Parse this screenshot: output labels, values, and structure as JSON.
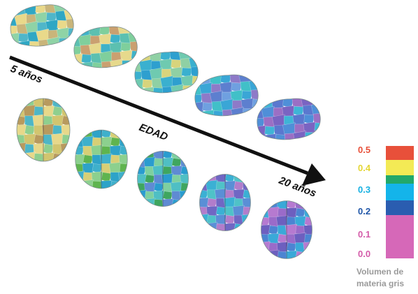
{
  "labels": {
    "start_age": "5 años",
    "axis": "EDAD",
    "end_age": "20 años"
  },
  "legend": {
    "title_line1": "Volumen de",
    "title_line2": "materia gris",
    "ticks": [
      {
        "label": "0.5",
        "color": "#e8503a"
      },
      {
        "label": "0.4",
        "color": "#e4d635"
      },
      {
        "label": "0.3",
        "color": "#16b0e2"
      },
      {
        "label": "0.2",
        "color": "#1f56a8"
      },
      {
        "label": "0.1",
        "color": "#d45ba9"
      },
      {
        "label": "0.0",
        "color": "#d45ba9"
      }
    ],
    "swatches": [
      "#e8503a",
      "#f3ea55",
      "#22a86a",
      "#14b4ea",
      "#2a5db0",
      "#d668b8"
    ]
  },
  "brains": {
    "side_views": [
      {
        "colors": [
          "#8fd3a6",
          "#e9d98a",
          "#4fb6c9",
          "#c9b57a",
          "#2fa7c4"
        ]
      },
      {
        "colors": [
          "#e6d98c",
          "#7fcf9c",
          "#3fb2c8",
          "#caa070",
          "#5cc0b0"
        ]
      },
      {
        "colors": [
          "#6fcab0",
          "#3ab0cf",
          "#d8d47c",
          "#2e9fcf",
          "#8fd0a4"
        ]
      },
      {
        "colors": [
          "#5d7fcf",
          "#3aa6d6",
          "#6fa0e0",
          "#8e7ac8",
          "#41c0c8"
        ]
      },
      {
        "colors": [
          "#7a64c2",
          "#4f8fd8",
          "#3fb4d6",
          "#9b6fc4",
          "#5a78cf"
        ]
      }
    ],
    "top_views": [
      {
        "colors": [
          "#e7d88a",
          "#b89a5e",
          "#8fcf8e",
          "#4eb6c6",
          "#d2c56f"
        ]
      },
      {
        "colors": [
          "#8cd08e",
          "#3fb0cb",
          "#5fb44f",
          "#d7cf76",
          "#2ea3c8"
        ]
      },
      {
        "colors": [
          "#4fbfc4",
          "#2a9ccf",
          "#3fa65f",
          "#7ed0a0",
          "#5f8bd3"
        ]
      },
      {
        "colors": [
          "#5a8fd6",
          "#3bb0d4",
          "#b27dcb",
          "#4fc2c8",
          "#7067c4"
        ]
      },
      {
        "colors": [
          "#6d5fbf",
          "#b67ad0",
          "#4c84d2",
          "#9a6bc9",
          "#3aa9d8"
        ]
      }
    ]
  }
}
